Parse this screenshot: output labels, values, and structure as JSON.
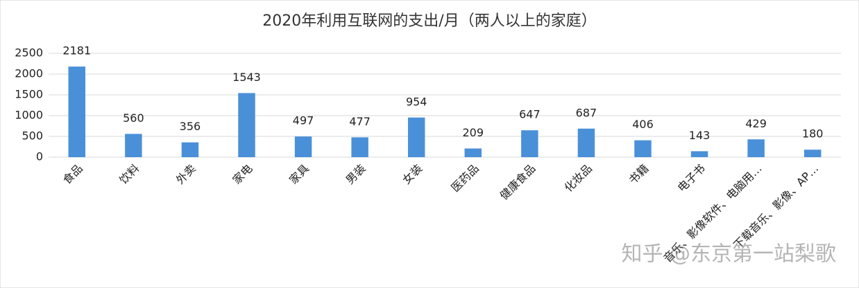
{
  "chart_data": {
    "type": "bar",
    "title": "2020年利用互联网的支出/月（两人以上的家庭）",
    "categories": [
      "食品",
      "饮料",
      "外卖",
      "家电",
      "家具",
      "男装",
      "女装",
      "医药品",
      "健康食品",
      "化妆品",
      "书籍",
      "电子书",
      "音乐、影像软件、电脑用…",
      "下载音乐、影像、AP…"
    ],
    "values": [
      2181,
      560,
      356,
      1543,
      497,
      477,
      954,
      209,
      647,
      687,
      406,
      143,
      429,
      180
    ],
    "color": "#4a90d9",
    "ylim": [
      0,
      2500
    ],
    "yticks": [
      0,
      500,
      1000,
      1500,
      2000,
      2500
    ],
    "grid": true,
    "watermark": "知乎 @东京第一站梨歌"
  }
}
